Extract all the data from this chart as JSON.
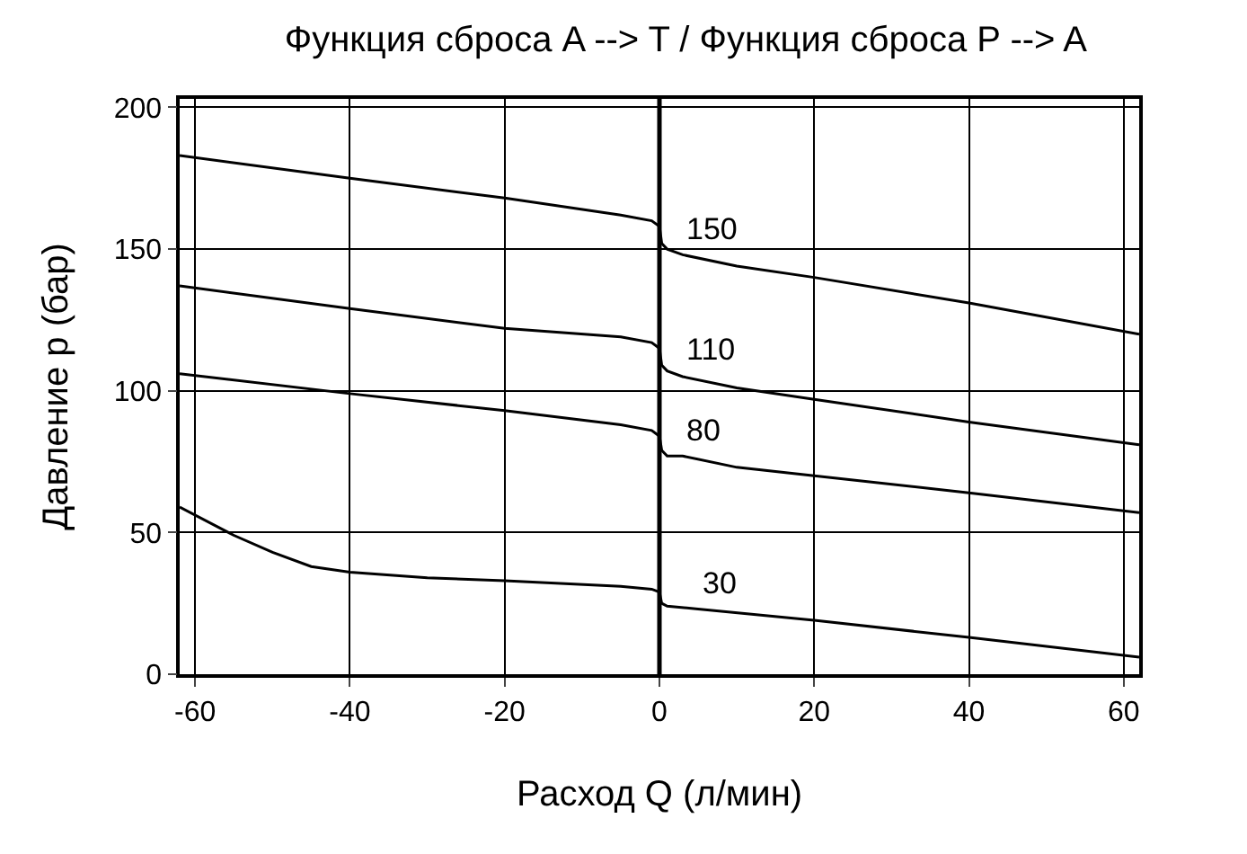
{
  "chart_data": {
    "type": "line",
    "title": "Функция сброса A --> T / Функция сброса P --> A",
    "xlabel": "Расход Q (л/мин)",
    "ylabel": "Давление p (бар)",
    "xlim": [
      -62,
      62
    ],
    "xticks": [
      -60,
      -40,
      -20,
      0,
      20,
      40,
      60
    ],
    "ylim": [
      0,
      203
    ],
    "yticks": [
      0,
      50,
      100,
      150,
      200
    ],
    "grid": true,
    "marker": "none",
    "line_style": "solid",
    "ref_lines": [
      {
        "axis": "x",
        "value": 0,
        "color": "#000000"
      }
    ],
    "series": [
      {
        "name": "150",
        "color": "#000000",
        "x": [
          -62,
          -40,
          -20,
          -5,
          -1,
          0,
          0.3,
          1,
          3,
          10,
          20,
          40,
          62
        ],
        "values": [
          183,
          175,
          168,
          162,
          160,
          158,
          152,
          150,
          148,
          144,
          140,
          131,
          120
        ]
      },
      {
        "name": "110",
        "color": "#000000",
        "x": [
          -62,
          -40,
          -20,
          -5,
          -1,
          0,
          0.3,
          1,
          3,
          10,
          20,
          40,
          62
        ],
        "values": [
          137,
          129,
          122,
          119,
          117,
          115,
          109,
          107,
          105,
          101,
          97,
          89,
          81
        ]
      },
      {
        "name": "80",
        "color": "#000000",
        "x": [
          -62,
          -40,
          -20,
          -5,
          -1,
          0,
          0.3,
          1,
          3,
          10,
          20,
          40,
          62
        ],
        "values": [
          106,
          99,
          93,
          88,
          86,
          84,
          79,
          77,
          77,
          73,
          70,
          64,
          57
        ]
      },
      {
        "name": "30",
        "color": "#000000",
        "x": [
          -62,
          -55,
          -50,
          -45,
          -40,
          -30,
          -20,
          -5,
          -1,
          0,
          0.3,
          1,
          5,
          20,
          40,
          62
        ],
        "values": [
          59,
          49,
          43,
          38,
          36,
          34,
          33,
          31,
          30,
          29,
          25,
          24,
          23,
          19,
          13,
          6
        ]
      }
    ]
  }
}
